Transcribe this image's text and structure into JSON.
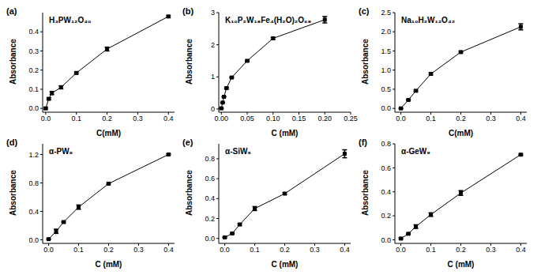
{
  "chart_data": [
    {
      "type": "line",
      "panel_label": "(a)",
      "title": "H₃PW₁₂O₄₀",
      "x_label": "C(mM)",
      "y_label": "Absorbance",
      "color": "#000000",
      "marker": "square",
      "x": [
        0,
        0.01,
        0.02,
        0.05,
        0.1,
        0.2,
        0.4
      ],
      "values": [
        0,
        0.05,
        0.08,
        0.11,
        0.185,
        0.31,
        0.48
      ],
      "errors": [
        0.005,
        0.005,
        0.008,
        0.008,
        0.005,
        0.01,
        0.005
      ],
      "xlim": [
        -0.01,
        0.42
      ],
      "xticks": [
        {
          "value": 0,
          "label": "0.0"
        },
        0.1,
        0.2,
        0.3,
        0.4
      ],
      "ylim": [
        -0.02,
        0.5
      ],
      "yticks": [
        {
          "value": 0,
          "label": "0.0"
        },
        0.1,
        0.2,
        0.3,
        0.4
      ]
    },
    {
      "type": "line",
      "panel_label": "(b)",
      "title": "K₁₀P₂W₁₈Fe₄(H₂O)₂O₆₈",
      "x_label": "C (mM)",
      "y_label": "Absorbance",
      "color": "#000000",
      "marker": "square",
      "x": [
        0,
        0.0025,
        0.005,
        0.01,
        0.02,
        0.05,
        0.1,
        0.2
      ],
      "values": [
        0.02,
        0.2,
        0.38,
        0.65,
        0.98,
        1.5,
        2.2,
        2.78
      ],
      "errors": [
        0.01,
        0.01,
        0.01,
        0.02,
        0.02,
        0.02,
        0.03,
        0.1
      ],
      "xlim": [
        -0.005,
        0.25
      ],
      "xticks": [
        {
          "value": 0,
          "label": "0.00"
        },
        0.05,
        {
          "value": 0.1,
          "label": "0.10"
        },
        0.15,
        {
          "value": 0.2,
          "label": "0.20"
        },
        0.25
      ],
      "ylim": [
        -0.1,
        3
      ],
      "yticks": [
        0,
        1,
        2,
        3
      ]
    },
    {
      "type": "line",
      "panel_label": "(c)",
      "title": "Na₁₀H₂W₁₂O₄₂",
      "x_label": "C(mM)",
      "y_label": "Absorbance",
      "color": "#000000",
      "marker": "square",
      "x": [
        0,
        0.025,
        0.05,
        0.1,
        0.2,
        0.4
      ],
      "values": [
        0,
        0.22,
        0.46,
        0.9,
        1.47,
        2.13
      ],
      "errors": [
        0.01,
        0.01,
        0.02,
        0.03,
        0.02,
        0.08
      ],
      "xlim": [
        -0.02,
        0.42
      ],
      "xticks": [
        {
          "value": 0,
          "label": "0.0"
        },
        0.1,
        0.2,
        0.3,
        0.4
      ],
      "ylim": [
        -0.1,
        2.5
      ],
      "yticks": [
        {
          "value": 0,
          "label": "0.0"
        },
        0.5,
        {
          "value": 1,
          "label": "1.0"
        },
        1.5,
        {
          "value": 2,
          "label": "2.0"
        },
        2.5
      ]
    },
    {
      "type": "line",
      "panel_label": "(d)",
      "title": "α-PW₉",
      "x_label": "C (mM)",
      "y_label": "Absorbance",
      "color": "#000000",
      "marker": "square",
      "x": [
        0,
        0.025,
        0.05,
        0.1,
        0.2,
        0.4
      ],
      "values": [
        0.01,
        0.12,
        0.25,
        0.46,
        0.79,
        1.2
      ],
      "errors": [
        0.005,
        0.03,
        0.01,
        0.03,
        0.01,
        0.01
      ],
      "xlim": [
        -0.02,
        0.42
      ],
      "xticks": [
        {
          "value": 0,
          "label": "0.0"
        },
        0.1,
        0.2,
        0.3,
        0.4
      ],
      "ylim": [
        -0.05,
        1.35
      ],
      "yticks": [
        {
          "value": 0,
          "label": "0.0"
        },
        0.4,
        0.8,
        1.2
      ]
    },
    {
      "type": "line",
      "panel_label": "(e)",
      "title": "α-SiW₉",
      "x_label": "C (mM)",
      "y_label": "Absorbance",
      "color": "#000000",
      "marker": "square",
      "x": [
        0,
        0.025,
        0.05,
        0.1,
        0.2,
        0.4
      ],
      "values": [
        0.01,
        0.05,
        0.14,
        0.3,
        0.45,
        0.85
      ],
      "errors": [
        0.005,
        0.005,
        0.01,
        0.02,
        0.01,
        0.04
      ],
      "xlim": [
        -0.02,
        0.42
      ],
      "xticks": [
        {
          "value": 0,
          "label": "0.0"
        },
        0.1,
        0.2,
        0.3,
        0.4
      ],
      "ylim": [
        -0.05,
        0.95
      ],
      "yticks": [
        {
          "value": 0,
          "label": "0.0"
        },
        0.2,
        0.4,
        0.6,
        0.8
      ]
    },
    {
      "type": "line",
      "panel_label": "(f)",
      "title": "α-GeW₉",
      "x_label": "C (mM)",
      "y_label": "Absorbance",
      "color": "#000000",
      "marker": "square",
      "x": [
        0,
        0.025,
        0.05,
        0.1,
        0.2,
        0.4
      ],
      "values": [
        0.01,
        0.05,
        0.11,
        0.21,
        0.39,
        0.71
      ],
      "errors": [
        0.005,
        0.005,
        0.015,
        0.015,
        0.02,
        0.005
      ],
      "xlim": [
        -0.02,
        0.42
      ],
      "xticks": [
        {
          "value": 0,
          "label": "0.0"
        },
        0.1,
        0.2,
        0.3,
        0.4
      ],
      "ylim": [
        -0.03,
        0.8
      ],
      "yticks": [
        {
          "value": 0,
          "label": "0.0"
        },
        0.2,
        0.4,
        0.6,
        0.8
      ]
    }
  ]
}
